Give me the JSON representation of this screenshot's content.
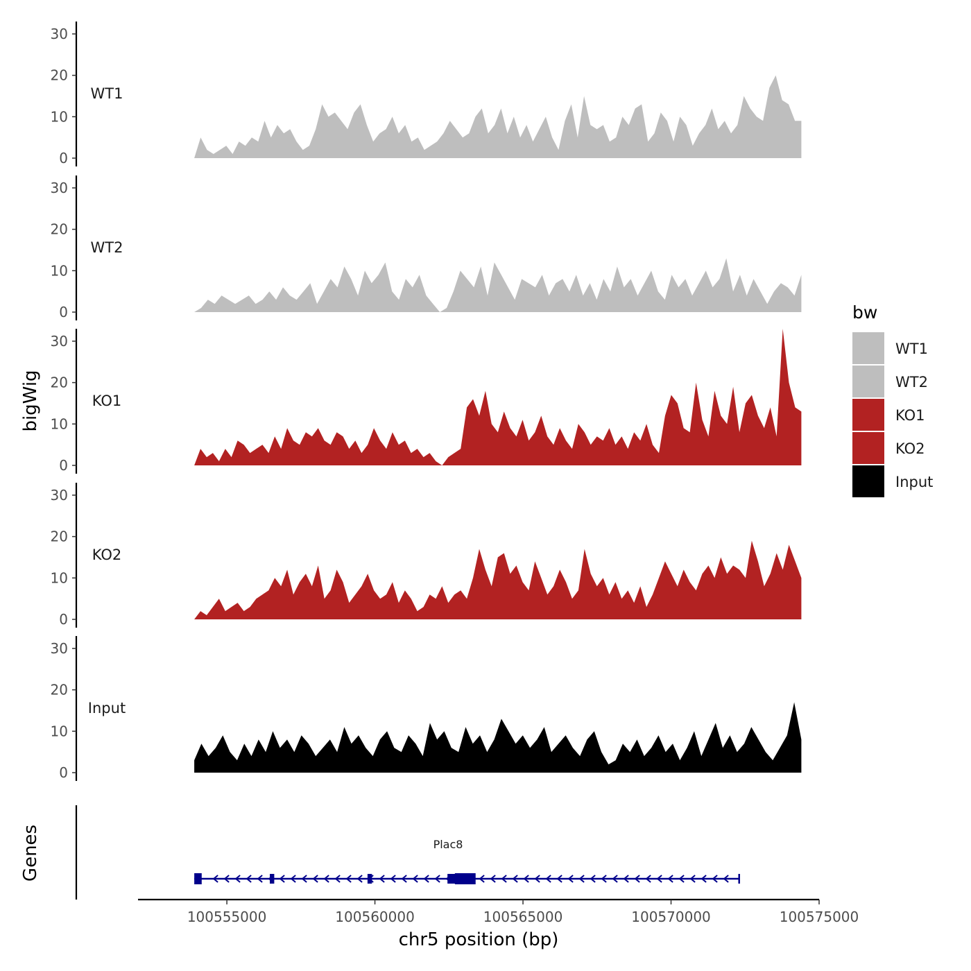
{
  "chart_data": {
    "type": "area",
    "title": "",
    "ylabel": "bigWig",
    "xlabel": "chr5 position (bp)",
    "xlim": [
      100552000,
      100575000
    ],
    "ylim": [
      0,
      33
    ],
    "yticks": [
      0,
      10,
      20,
      30
    ],
    "xticks": [
      100555000,
      100560000,
      100565000,
      100570000,
      100575000
    ],
    "x_start": 100553900,
    "x_end": 100574400,
    "legend": {
      "title": "bw",
      "entries": [
        {
          "name": "WT1",
          "color": "#bebebe"
        },
        {
          "name": "WT2",
          "color": "#bebebe"
        },
        {
          "name": "KO1",
          "color": "#b22222"
        },
        {
          "name": "KO2",
          "color": "#b22222"
        },
        {
          "name": "Input",
          "color": "#000000"
        }
      ],
      "position": "right"
    },
    "series": [
      {
        "name": "WT1",
        "color": "#bebebe",
        "values": [
          0,
          5,
          2,
          1,
          2,
          3,
          1,
          4,
          3,
          5,
          4,
          9,
          5,
          8,
          6,
          7,
          4,
          2,
          3,
          7,
          13,
          10,
          11,
          9,
          7,
          11,
          13,
          8,
          4,
          6,
          7,
          10,
          6,
          8,
          4,
          5,
          2,
          3,
          4,
          6,
          9,
          7,
          5,
          6,
          10,
          12,
          6,
          8,
          12,
          6,
          10,
          5,
          8,
          4,
          7,
          10,
          5,
          2,
          9,
          13,
          5,
          15,
          8,
          7,
          8,
          4,
          5,
          10,
          8,
          12,
          13,
          4,
          6,
          11,
          9,
          4,
          10,
          8,
          3,
          6,
          8,
          12,
          7,
          9,
          6,
          8,
          15,
          12,
          10,
          9,
          17,
          20,
          14,
          13,
          9,
          9
        ]
      },
      {
        "name": "WT2",
        "color": "#bebebe",
        "values": [
          0,
          1,
          3,
          2,
          4,
          3,
          2,
          3,
          4,
          2,
          3,
          5,
          3,
          6,
          4,
          3,
          5,
          7,
          2,
          5,
          8,
          6,
          11,
          8,
          4,
          10,
          7,
          9,
          12,
          5,
          3,
          8,
          6,
          9,
          4,
          2,
          0,
          1,
          5,
          10,
          8,
          6,
          11,
          4,
          12,
          9,
          6,
          3,
          8,
          7,
          6,
          9,
          4,
          7,
          8,
          5,
          9,
          4,
          7,
          3,
          8,
          5,
          11,
          6,
          8,
          4,
          7,
          10,
          5,
          3,
          9,
          6,
          8,
          4,
          7,
          10,
          6,
          8,
          13,
          5,
          9,
          4,
          8,
          5,
          2,
          5,
          7,
          6,
          4,
          9
        ]
      },
      {
        "name": "KO1",
        "color": "#b22222",
        "values": [
          0,
          4,
          2,
          3,
          1,
          4,
          2,
          6,
          5,
          3,
          4,
          5,
          3,
          7,
          4,
          9,
          6,
          5,
          8,
          7,
          9,
          6,
          5,
          8,
          7,
          4,
          6,
          3,
          5,
          9,
          6,
          4,
          8,
          5,
          6,
          3,
          4,
          2,
          3,
          1,
          0,
          2,
          3,
          4,
          14,
          16,
          12,
          18,
          10,
          8,
          13,
          9,
          7,
          11,
          6,
          8,
          12,
          7,
          5,
          9,
          6,
          4,
          10,
          8,
          5,
          7,
          6,
          9,
          5,
          7,
          4,
          8,
          6,
          10,
          5,
          3,
          12,
          17,
          15,
          9,
          8,
          20,
          11,
          7,
          18,
          12,
          10,
          19,
          8,
          15,
          17,
          12,
          9,
          14,
          7,
          33,
          20,
          14,
          13
        ]
      },
      {
        "name": "KO2",
        "color": "#b22222",
        "values": [
          0,
          2,
          1,
          3,
          5,
          2,
          3,
          4,
          2,
          3,
          5,
          6,
          7,
          10,
          8,
          12,
          6,
          9,
          11,
          8,
          13,
          5,
          7,
          12,
          9,
          4,
          6,
          8,
          11,
          7,
          5,
          6,
          9,
          4,
          7,
          5,
          2,
          3,
          6,
          5,
          8,
          4,
          6,
          7,
          5,
          10,
          17,
          12,
          8,
          15,
          16,
          11,
          13,
          9,
          7,
          14,
          10,
          6,
          8,
          12,
          9,
          5,
          7,
          17,
          11,
          8,
          10,
          6,
          9,
          5,
          7,
          4,
          8,
          3,
          6,
          10,
          14,
          11,
          8,
          12,
          9,
          7,
          11,
          13,
          10,
          15,
          11,
          13,
          12,
          10,
          19,
          14,
          8,
          11,
          16,
          12,
          18,
          14,
          10
        ]
      },
      {
        "name": "Input",
        "color": "#000000",
        "values": [
          3,
          7,
          4,
          6,
          9,
          5,
          3,
          7,
          4,
          8,
          5,
          10,
          6,
          8,
          5,
          9,
          7,
          4,
          6,
          8,
          5,
          11,
          7,
          9,
          6,
          4,
          8,
          10,
          6,
          5,
          9,
          7,
          4,
          12,
          8,
          10,
          6,
          5,
          11,
          7,
          9,
          5,
          8,
          13,
          10,
          7,
          9,
          6,
          8,
          11,
          5,
          7,
          9,
          6,
          4,
          8,
          10,
          5,
          2,
          3,
          7,
          5,
          8,
          4,
          6,
          9,
          5,
          7,
          3,
          6,
          10,
          4,
          8,
          12,
          6,
          9,
          5,
          7,
          11,
          8,
          5,
          3,
          6,
          9,
          17,
          8
        ]
      }
    ],
    "genes": {
      "title": "Genes",
      "name": "Plac8",
      "strand": "-",
      "color": "#00008b",
      "start": 100553900,
      "end": 100572300,
      "exons": [
        [
          100553900,
          100554150
        ],
        [
          100556450,
          100556600
        ],
        [
          100559750,
          100559900
        ],
        [
          100562450,
          100562800
        ],
        [
          100562700,
          100563400
        ]
      ]
    }
  }
}
